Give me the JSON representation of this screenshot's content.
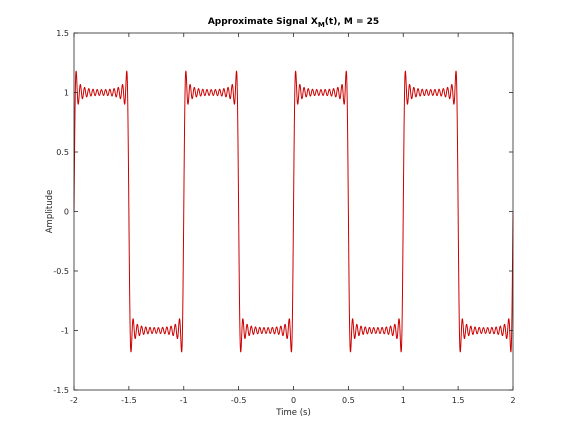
{
  "chart_data": {
    "type": "line",
    "title": "Approximate Signal X",
    "title_subscript": "M",
    "title_suffix": "(t), M = 25",
    "xlabel": "Time (s)",
    "ylabel": "Amplitude",
    "xlim": [
      -2,
      2
    ],
    "ylim": [
      -1.5,
      1.5
    ],
    "xticks": [
      -2,
      -1.5,
      -1,
      -0.5,
      0,
      0.5,
      1,
      1.5,
      2
    ],
    "xtick_labels": [
      "-2",
      "-1.5",
      "-1",
      "-0.5",
      "0",
      "0.5",
      "1",
      "1.5",
      "2"
    ],
    "yticks": [
      -1.5,
      -1,
      -0.5,
      0,
      0.5,
      1,
      1.5
    ],
    "ytick_labels": [
      "-1.5",
      "-1",
      "-0.5",
      "0",
      "0.5",
      "1",
      "1.5"
    ],
    "grid": false,
    "legend": "none",
    "series": [
      {
        "color": "#cc0000",
        "function": "Fourier partial sum of a square wave, period 1, amplitude ±1, harmonics up to M = 25",
        "period": 1,
        "amplitude": 1,
        "harmonics": 25,
        "x_range": [
          -2,
          2
        ]
      }
    ]
  }
}
